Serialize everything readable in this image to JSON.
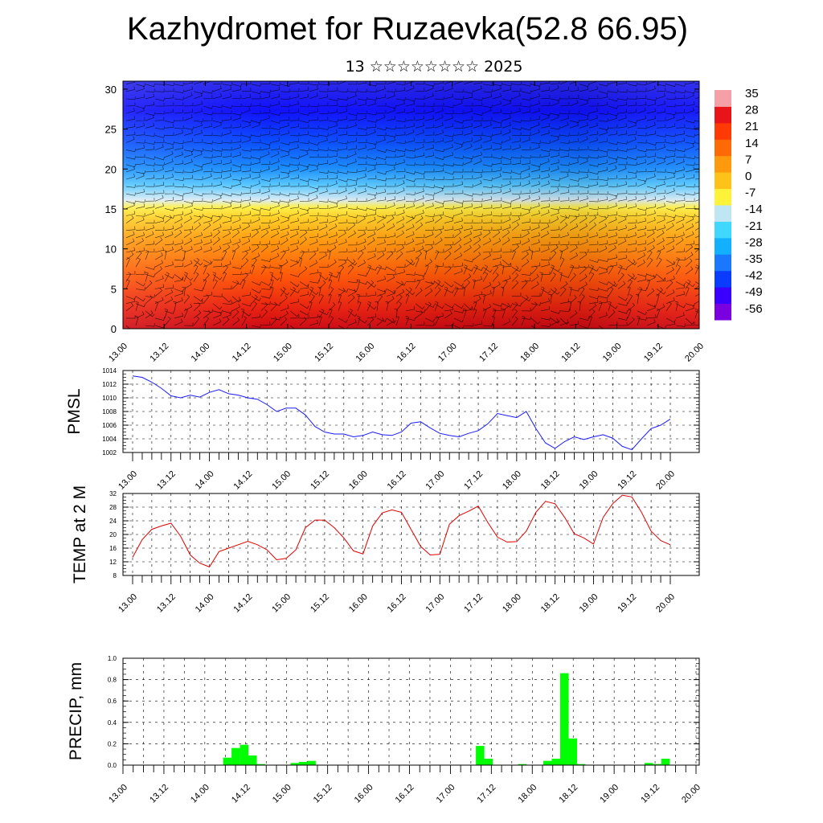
{
  "title": "Kazhydromet for Ruzaevka(52.8 66.95)",
  "subtitle": "13 ☆☆☆☆☆☆☆☆ 2025",
  "colors": {
    "pmsl_line": "#1a1aff",
    "temp_line": "#e00000",
    "precip_bar": "#00ff00",
    "palette": [
      "#7b00e0",
      "#3a00ff",
      "#0a3cff",
      "#1a78ff",
      "#12b0ff",
      "#40d8ff",
      "#bfe6f2",
      "#fff23a",
      "#ffc21a",
      "#ff9a0e",
      "#ff6a08",
      "#ff3a05",
      "#e8141a",
      "#f5a0a6"
    ]
  },
  "chart_data": [
    {
      "type": "heatmap",
      "name": "cross-section",
      "x_ticks": [
        "13.00",
        "13.12",
        "14.00",
        "14.12",
        "15.00",
        "15.12",
        "16.00",
        "16.12",
        "17.00",
        "17.12",
        "18.00",
        "18.12",
        "19.00",
        "19.12",
        "20.00"
      ],
      "y_ticks": [
        "0",
        "5",
        "10",
        "15",
        "20",
        "25",
        "30"
      ],
      "ylim": [
        0,
        31
      ],
      "colorbar_labels": [
        "35",
        "28",
        "21",
        "14",
        "7",
        "0",
        "-7",
        "-14",
        "-21",
        "-28",
        "-35",
        "-42",
        "-49",
        "-56"
      ]
    },
    {
      "type": "line",
      "name": "PMSL",
      "ylabel": "PMSL",
      "ylim": [
        1002,
        1014
      ],
      "y_ticks": [
        "1014",
        "1012",
        "1010",
        "1008",
        "1006",
        "1004",
        "1002"
      ],
      "x_ticks": [
        "13.00",
        "13.12",
        "14.00",
        "14.12",
        "15.00",
        "15.12",
        "16.00",
        "16.12",
        "17.00",
        "17.12",
        "18.00",
        "18.12",
        "19.00",
        "19.12",
        "20.00"
      ],
      "values": [
        1013.2,
        1013.0,
        1012.3,
        1011.4,
        1010.3,
        1010.0,
        1010.4,
        1010.1,
        1010.8,
        1011.2,
        1010.6,
        1010.4,
        1010.0,
        1009.8,
        1009.0,
        1008.0,
        1008.5,
        1008.5,
        1007.5,
        1005.8,
        1005.0,
        1004.7,
        1004.7,
        1004.3,
        1004.5,
        1005.0,
        1004.6,
        1004.5,
        1005.0,
        1006.3,
        1006.5,
        1005.6,
        1004.8,
        1004.5,
        1004.3,
        1004.8,
        1005.2,
        1006.2,
        1007.7,
        1007.4,
        1007.1,
        1008.0,
        1005.5,
        1003.4,
        1002.6,
        1003.6,
        1004.3,
        1003.9,
        1004.3,
        1004.6,
        1004.1,
        1002.9,
        1002.4,
        1004.0,
        1005.5,
        1006.0,
        1006.9
      ]
    },
    {
      "type": "line",
      "name": "TEMP at 2 M",
      "ylabel": "TEMP at 2 M",
      "ylim": [
        8,
        32
      ],
      "y_ticks": [
        "32",
        "28",
        "24",
        "20",
        "16",
        "12",
        "8"
      ],
      "x_ticks": [
        "13.00",
        "13.12",
        "14.00",
        "14.12",
        "15.00",
        "15.12",
        "16.00",
        "16.12",
        "17.00",
        "17.12",
        "18.00",
        "18.12",
        "19.00",
        "19.12",
        "20.00"
      ],
      "values": [
        13.3,
        18.5,
        21.5,
        22.5,
        23.3,
        19.5,
        14.0,
        11.6,
        10.5,
        15.0,
        16.0,
        17.0,
        18.0,
        17.0,
        15.5,
        12.6,
        13.0,
        15.5,
        22.0,
        24.2,
        24.2,
        22.0,
        19.0,
        15.2,
        14.3,
        22.5,
        26.3,
        27.2,
        26.5,
        21.5,
        16.5,
        14.0,
        14.2,
        23.0,
        25.5,
        26.8,
        28.3,
        23.5,
        19.2,
        17.8,
        17.9,
        21.0,
        26.5,
        29.7,
        29.0,
        25.0,
        20.2,
        19.0,
        17.2,
        25.0,
        29.0,
        31.5,
        31.0,
        26.5,
        21.0,
        18.2,
        17.0
      ]
    },
    {
      "type": "bar",
      "name": "PRECIP",
      "ylabel": "PRECIP, mm",
      "ylim": [
        0,
        1.0
      ],
      "y_ticks": [
        "1.0",
        "0.8",
        "0.6",
        "0.4",
        "0.2",
        "0.0"
      ],
      "x_ticks": [
        "13.00",
        "13.12",
        "14.00",
        "14.12",
        "15.00",
        "15.12",
        "16.00",
        "16.12",
        "17.00",
        "17.12",
        "18.00",
        "18.12",
        "19.00",
        "19.12",
        "20.00"
      ],
      "values": [
        0,
        0,
        0,
        0,
        0,
        0,
        0,
        0,
        0,
        0,
        0,
        0,
        0.07,
        0.16,
        0.19,
        0.09,
        0.01,
        0,
        0,
        0,
        0.02,
        0.03,
        0.04,
        0,
        0,
        0,
        0,
        0,
        0,
        0,
        0,
        0,
        0,
        0,
        0,
        0,
        0,
        0,
        0,
        0,
        0,
        0,
        0.18,
        0.06,
        0,
        0,
        0,
        0.01,
        0,
        0,
        0.04,
        0.06,
        0.86,
        0.25,
        0.01,
        0,
        0,
        0,
        0,
        0,
        0,
        0,
        0.02,
        0.01,
        0.06,
        0,
        0,
        0,
        0
      ]
    }
  ]
}
